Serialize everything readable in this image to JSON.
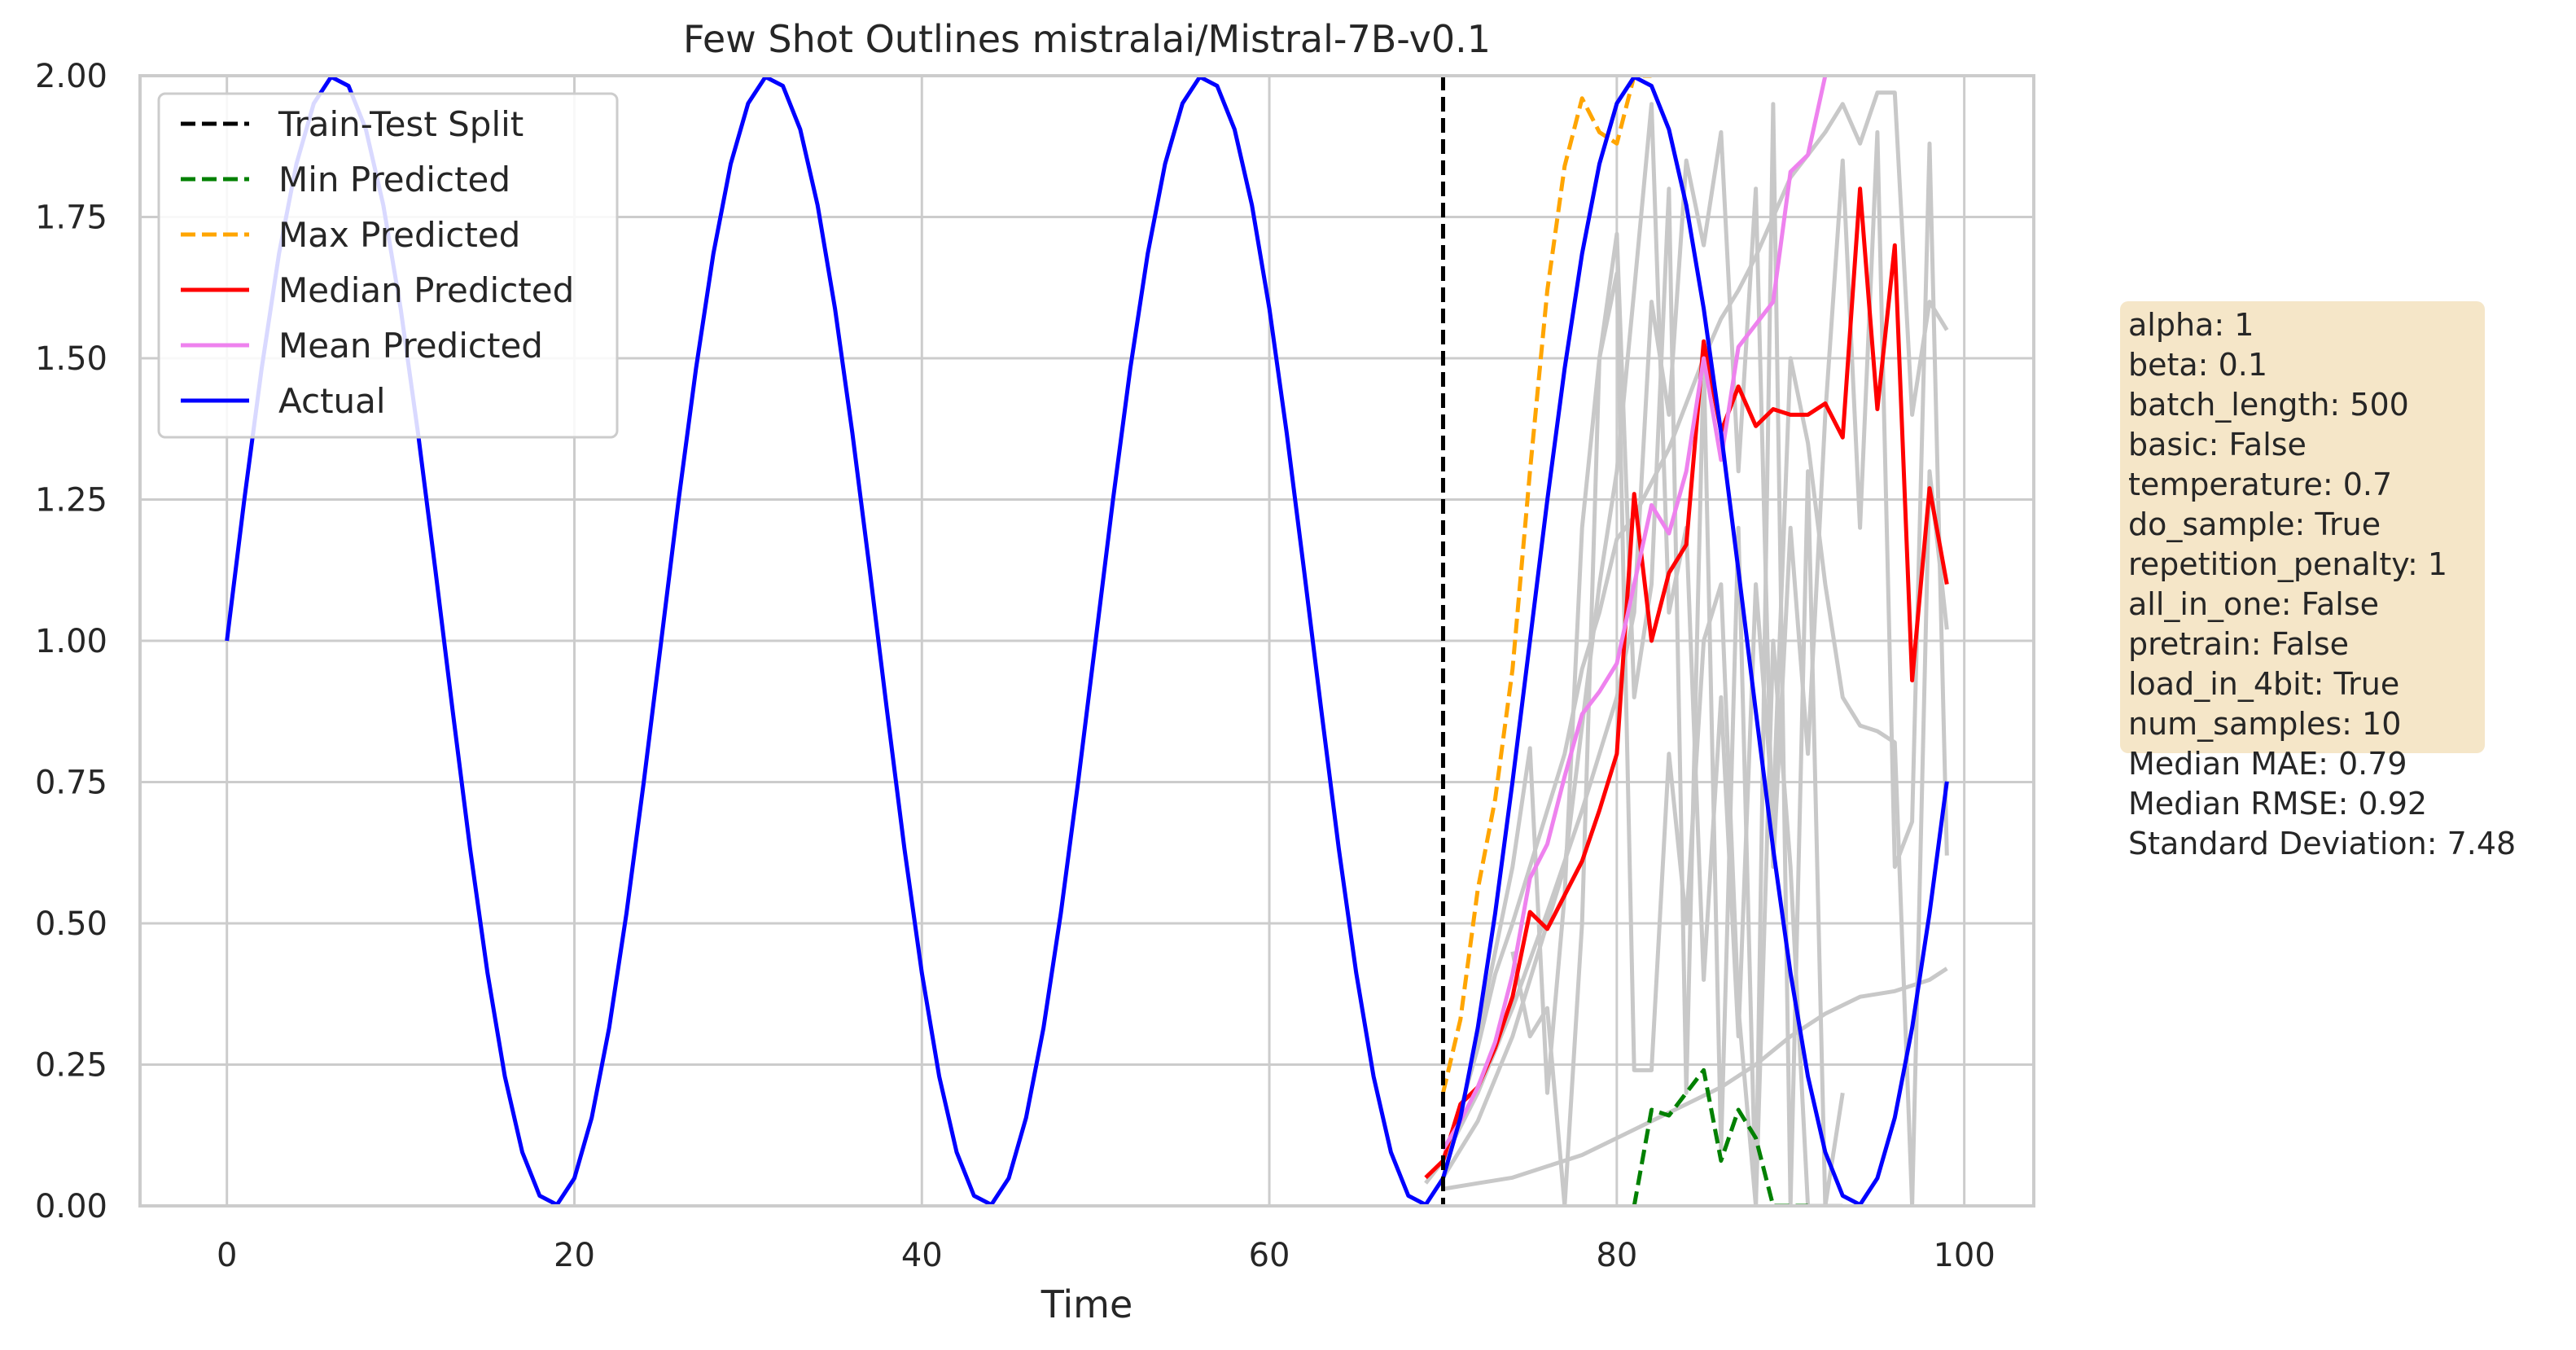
{
  "chart_data": {
    "type": "line",
    "title": "Few Shot Outlines mistralai/Mistral-7B-v0.1",
    "xlabel": "Time",
    "ylabel": "",
    "xlim": [
      -5,
      104
    ],
    "ylim": [
      0,
      2
    ],
    "xticks": [
      0,
      20,
      40,
      60,
      80,
      100
    ],
    "xtick_labels": [
      "0",
      "20",
      "40",
      "60",
      "80",
      "100"
    ],
    "yticks": [
      0,
      0.25,
      0.5,
      0.75,
      1.0,
      1.25,
      1.5,
      1.75,
      2.0
    ],
    "ytick_labels": [
      "0.00",
      "0.25",
      "0.50",
      "0.75",
      "1.00",
      "1.25",
      "1.50",
      "1.75",
      "2.00"
    ],
    "grid": true,
    "legend_position": "top-left",
    "train_test_split": 70,
    "actual": {
      "name": "Actual",
      "color": "#0000ff",
      "x": [
        0,
        1,
        2,
        3,
        4,
        5,
        6,
        7,
        8,
        9,
        10,
        11,
        12,
        13,
        14,
        15,
        16,
        17,
        18,
        19,
        20,
        21,
        22,
        23,
        24,
        25,
        26,
        27,
        28,
        29,
        30,
        31,
        32,
        33,
        34,
        35,
        36,
        37,
        38,
        39,
        40,
        41,
        42,
        43,
        44,
        45,
        46,
        47,
        48,
        49,
        50,
        51,
        52,
        53,
        54,
        55,
        56,
        57,
        58,
        59,
        60,
        61,
        62,
        63,
        64,
        65,
        66,
        67,
        68,
        69,
        70,
        71,
        72,
        73,
        74,
        75,
        76,
        77,
        78,
        79,
        80,
        81,
        82,
        83,
        84,
        85,
        86,
        87,
        88,
        89,
        90,
        91,
        92,
        93,
        94,
        95,
        96,
        97,
        98,
        99
      ],
      "y": [
        1.0,
        1.249,
        1.482,
        1.685,
        1.844,
        1.951,
        1.998,
        1.982,
        1.905,
        1.771,
        1.588,
        1.368,
        1.125,
        0.875,
        0.632,
        0.412,
        0.229,
        0.095,
        0.018,
        0.002,
        0.049,
        0.156,
        0.315,
        0.518,
        0.751,
        1.0,
        1.249,
        1.482,
        1.685,
        1.844,
        1.951,
        1.998,
        1.982,
        1.905,
        1.771,
        1.588,
        1.368,
        1.125,
        0.875,
        0.632,
        0.412,
        0.229,
        0.095,
        0.018,
        0.002,
        0.049,
        0.156,
        0.315,
        0.518,
        0.751,
        1.0,
        1.249,
        1.482,
        1.685,
        1.844,
        1.951,
        1.998,
        1.982,
        1.905,
        1.771,
        1.588,
        1.368,
        1.125,
        0.875,
        0.632,
        0.412,
        0.229,
        0.095,
        0.018,
        0.002,
        0.049,
        0.156,
        0.315,
        0.518,
        0.751,
        1.0,
        1.249,
        1.482,
        1.685,
        1.844,
        1.951,
        1.998,
        1.982,
        1.905,
        1.771,
        1.588,
        1.368,
        1.125,
        0.875,
        0.632,
        0.412,
        0.229,
        0.095,
        0.018,
        0.002,
        0.049,
        0.156,
        0.315,
        0.518,
        0.751
      ]
    },
    "series": [
      {
        "name": "Min Predicted",
        "color": "#008000",
        "dash": true,
        "x": [
          81,
          82,
          83,
          84,
          85,
          86,
          87,
          88,
          89,
          90,
          91
        ],
        "y": [
          0.0,
          0.17,
          0.16,
          0.2,
          0.24,
          0.08,
          0.17,
          0.12,
          0.0,
          0.0,
          0.0
        ]
      },
      {
        "name": "Max Predicted",
        "color": "#ffa500",
        "dash": true,
        "x": [
          70,
          71,
          72,
          73,
          74,
          75,
          76,
          77,
          78,
          79,
          80,
          81,
          82
        ],
        "y": [
          0.2,
          0.33,
          0.56,
          0.72,
          0.95,
          1.3,
          1.62,
          1.84,
          1.96,
          1.9,
          1.88,
          2.0,
          2.0
        ]
      },
      {
        "name": "Median Predicted",
        "color": "#ff0000",
        "dash": false,
        "x": [
          69,
          70,
          71,
          72,
          73,
          74,
          75,
          76,
          77,
          78,
          79,
          80,
          81,
          82,
          83,
          84,
          85,
          86,
          87,
          88,
          89,
          90,
          91,
          92,
          93,
          94,
          95,
          96,
          97,
          98,
          99
        ],
        "y": [
          0.05,
          0.08,
          0.18,
          0.21,
          0.28,
          0.37,
          0.52,
          0.49,
          0.55,
          0.61,
          0.7,
          0.8,
          1.26,
          1.0,
          1.12,
          1.17,
          1.53,
          1.37,
          1.45,
          1.38,
          1.41,
          1.4,
          1.4,
          1.42,
          1.36,
          1.8,
          1.41,
          1.7,
          0.93,
          1.27,
          1.1
        ]
      },
      {
        "name": "Mean Predicted",
        "color": "#ee82ee",
        "dash": false,
        "x": [
          70,
          71,
          72,
          73,
          74,
          75,
          76,
          77,
          78,
          79,
          80,
          81,
          82,
          83,
          84,
          85,
          86,
          87,
          88,
          89,
          90,
          91,
          92
        ],
        "y": [
          0.1,
          0.15,
          0.21,
          0.29,
          0.41,
          0.58,
          0.64,
          0.76,
          0.87,
          0.91,
          0.96,
          1.1,
          1.24,
          1.19,
          1.3,
          1.5,
          1.32,
          1.52,
          1.56,
          1.6,
          1.83,
          1.86,
          2.0
        ]
      }
    ],
    "samples": {
      "color": "#c8c8c8",
      "lines": [
        {
          "x": [
            69,
            70,
            71,
            72,
            73,
            74,
            75,
            76,
            77,
            78,
            79,
            80,
            81,
            82,
            83,
            84,
            85,
            86,
            87,
            88,
            89,
            90,
            91,
            92,
            93,
            94,
            95,
            96,
            97,
            98,
            99
          ],
          "y": [
            0.04,
            0.08,
            0.17,
            0.28,
            0.41,
            0.5,
            0.6,
            0.7,
            0.8,
            0.95,
            1.05,
            1.18,
            1.22,
            1.28,
            1.34,
            1.42,
            1.5,
            1.57,
            1.62,
            1.68,
            1.75,
            1.82,
            1.86,
            1.9,
            1.95,
            1.88,
            1.97,
            1.97,
            1.4,
            1.6,
            1.55
          ]
        },
        {
          "x": [
            70,
            72,
            74,
            76,
            78,
            80,
            82,
            84,
            86,
            88,
            90,
            92,
            94,
            96,
            98,
            99
          ],
          "y": [
            0.03,
            0.04,
            0.05,
            0.07,
            0.09,
            0.12,
            0.15,
            0.18,
            0.21,
            0.25,
            0.3,
            0.34,
            0.37,
            0.38,
            0.4,
            0.42
          ]
        },
        {
          "x": [
            70,
            72,
            74,
            76,
            78,
            80,
            81,
            82,
            83,
            84,
            85,
            86,
            87,
            88,
            89,
            90,
            91,
            92,
            93,
            94,
            95,
            96,
            97,
            98,
            99
          ],
          "y": [
            0.08,
            0.2,
            0.35,
            0.52,
            0.7,
            0.9,
            1.05,
            1.6,
            1.4,
            1.85,
            1.7,
            1.9,
            1.3,
            1.8,
            0.6,
            1.2,
            0.8,
            1.4,
            1.85,
            1.2,
            1.9,
            0.6,
            0.68,
            1.88,
            0.62
          ]
        },
        {
          "x": [
            70,
            72,
            74,
            76,
            77,
            78,
            79,
            80,
            81,
            82,
            83,
            84,
            85,
            86,
            87,
            88,
            89,
            90,
            91,
            92,
            93,
            94,
            95,
            96,
            97,
            98,
            99
          ],
          "y": [
            0.05,
            0.15,
            0.3,
            0.5,
            0.6,
            0.85,
            1.1,
            1.3,
            1.62,
            1.95,
            1.05,
            1.2,
            0.4,
            0.9,
            0.3,
            1.1,
            0.7,
            1.5,
            1.35,
            1.1,
            0.9,
            0.85,
            0.84,
            0.82,
            0.0,
            1.3,
            1.02
          ]
        },
        {
          "x": [
            72,
            73,
            74,
            75,
            76,
            77,
            78,
            79,
            80,
            81,
            82,
            83,
            84,
            85,
            86,
            87,
            88,
            89,
            90,
            91,
            92,
            93
          ],
          "y": [
            0.3,
            0.45,
            0.6,
            0.81,
            0.2,
            0.55,
            1.2,
            1.5,
            1.72,
            0.9,
            1.1,
            1.8,
            0.2,
            1.5,
            0.1,
            1.2,
            0.0,
            1.95,
            0.0,
            1.3,
            0.0,
            0.2
          ]
        },
        {
          "x": [
            74,
            75,
            76,
            77,
            78,
            79,
            80,
            81,
            82,
            83,
            84,
            85,
            86,
            87,
            88,
            89,
            90,
            91,
            92,
            93
          ],
          "y": [
            0.45,
            0.3,
            0.35,
            0.0,
            0.5,
            1.5,
            1.65,
            0.24,
            0.24,
            0.8,
            0.5,
            1.0,
            1.1,
            0.35,
            0.0,
            1.0,
            0.6,
            0.0,
            0.0,
            0.0
          ]
        }
      ]
    }
  },
  "legend": [
    {
      "label": "Train-Test Split",
      "color": "#000000",
      "dash": true
    },
    {
      "label": "Min Predicted",
      "color": "#008000",
      "dash": true
    },
    {
      "label": "Max Predicted",
      "color": "#ffa500",
      "dash": true
    },
    {
      "label": "Median Predicted",
      "color": "#ff0000",
      "dash": false
    },
    {
      "label": "Mean Predicted",
      "color": "#ee82ee",
      "dash": false
    },
    {
      "label": "Actual",
      "color": "#0000ff",
      "dash": false
    }
  ],
  "info_box": {
    "background": "#f5e6c8",
    "lines": [
      "alpha: 1",
      "beta: 0.1",
      "batch_length: 500",
      "basic: False",
      "temperature: 0.7",
      "do_sample: True",
      "repetition_penalty: 1",
      "all_in_one: False",
      "pretrain: False",
      "load_in_4bit: True",
      "num_samples: 10"
    ],
    "metrics": [
      "Median MAE: 0.79",
      "Median RMSE: 0.92",
      "Standard Deviation: 7.48"
    ]
  }
}
